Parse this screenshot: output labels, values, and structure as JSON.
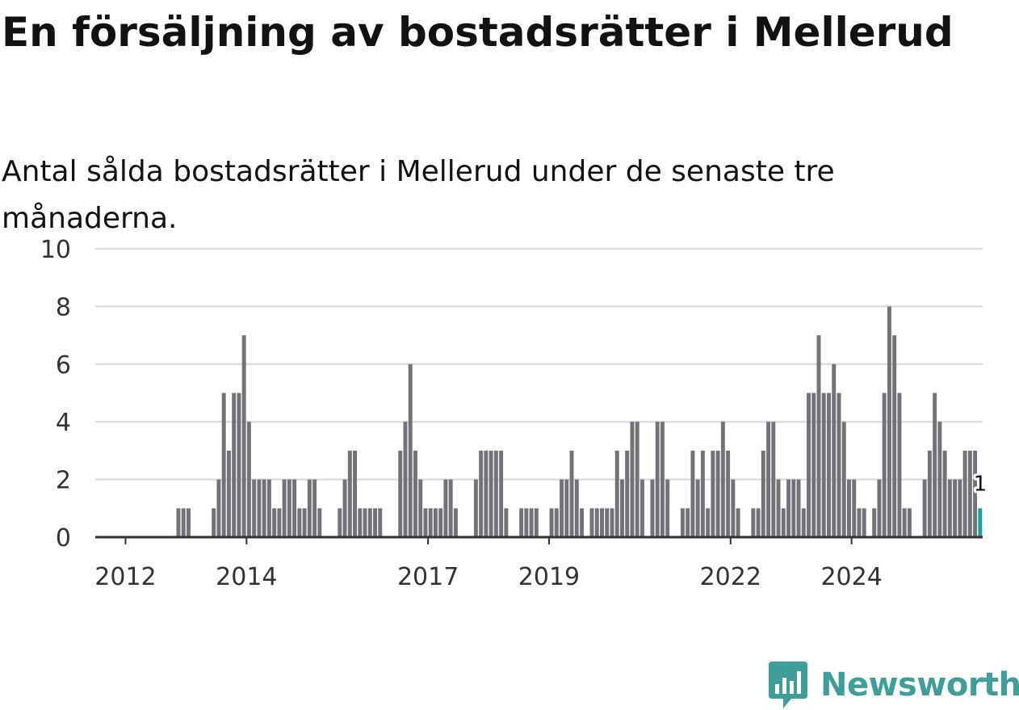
{
  "title": "En försäljning av bostadsrätter i Mellerud",
  "subtitle": "Antal sålda bostadsrätter i Mellerud under de senaste tre månaderna.",
  "brand": {
    "name": "Newsworthy",
    "icon": "newsworthy-logo-icon",
    "color": "#3d9e9a"
  },
  "colors": {
    "bar": "#737278",
    "highlight": "#1aa39a",
    "grid": "#dddddd",
    "axis": "#333333"
  },
  "chart_data": {
    "type": "bar",
    "title": "En försäljning av bostadsrätter i Mellerud",
    "subtitle": "Antal sålda bostadsrätter i Mellerud under de senaste tre månaderna.",
    "xlabel": "",
    "ylabel": "",
    "x_start": "2011-07",
    "x_interval": "month",
    "ylim": [
      0,
      10
    ],
    "yticks": [
      0,
      2,
      4,
      6,
      8,
      10
    ],
    "xticks": [
      "2012",
      "2014",
      "2017",
      "2019",
      "2022",
      "2024"
    ],
    "grid": true,
    "values": [
      0,
      0,
      0,
      0,
      0,
      0,
      0,
      0,
      0,
      0,
      0,
      0,
      0,
      0,
      0,
      0,
      1,
      1,
      1,
      0,
      0,
      0,
      0,
      1,
      2,
      5,
      3,
      5,
      5,
      7,
      4,
      2,
      2,
      2,
      2,
      1,
      1,
      2,
      2,
      2,
      1,
      1,
      2,
      2,
      1,
      0,
      0,
      0,
      1,
      2,
      3,
      3,
      1,
      1,
      1,
      1,
      1,
      0,
      0,
      0,
      3,
      4,
      6,
      3,
      2,
      1,
      1,
      1,
      1,
      2,
      2,
      1,
      0,
      0,
      0,
      2,
      3,
      3,
      3,
      3,
      3,
      1,
      0,
      0,
      1,
      1,
      1,
      1,
      0,
      0,
      1,
      1,
      2,
      2,
      3,
      2,
      1,
      0,
      1,
      1,
      1,
      1,
      1,
      3,
      2,
      3,
      4,
      4,
      2,
      0,
      2,
      4,
      4,
      2,
      0,
      0,
      1,
      1,
      3,
      2,
      3,
      1,
      3,
      3,
      4,
      3,
      2,
      1,
      0,
      0,
      1,
      1,
      3,
      4,
      4,
      2,
      1,
      2,
      2,
      2,
      1,
      5,
      5,
      7,
      5,
      5,
      6,
      5,
      4,
      2,
      2,
      1,
      1,
      0,
      1,
      2,
      5,
      8,
      7,
      5,
      1,
      1,
      0,
      0,
      2,
      3,
      5,
      4,
      3,
      2,
      2,
      2,
      3,
      3,
      3,
      1
    ],
    "highlight_last": true,
    "data_labels": [
      {
        "index": "last",
        "text": "1"
      }
    ]
  }
}
